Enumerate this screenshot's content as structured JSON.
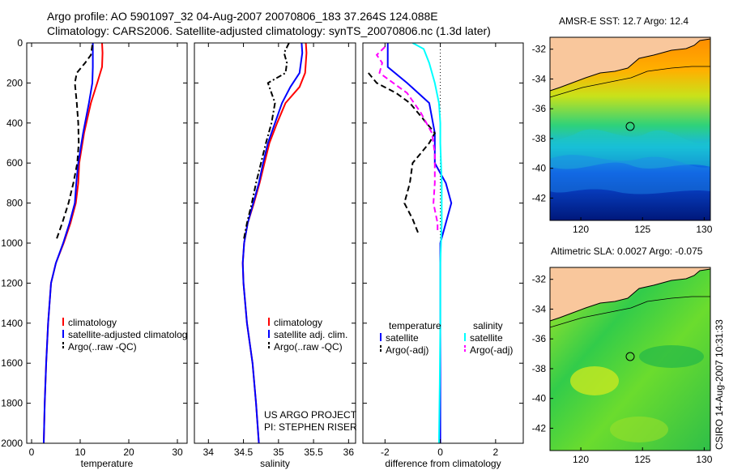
{
  "title_line1": "Argo profile: AO 5901097_32 04-Aug-2007 20070806_183 37.264S 124.088E",
  "title_line2": "Climatology: CARS2006. Satellite-adjusted climatology: synTS_20070806.nc (1.3d later)",
  "timestamp": "CSIRO 14-Aug-2007 10:31:33",
  "project_line1": "US ARGO PROJECT",
  "project_line2": "PI: STEPHEN RISER",
  "colors": {
    "climatology": "#ff0000",
    "satellite": "#0000ff",
    "argo": "#000000",
    "satellite_diff_salinity": "#00ffff",
    "argo_diff_salinity": "#ff00ff",
    "land": "#f9c79c"
  },
  "chart_data": [
    {
      "type": "line",
      "name": "temperature-profile",
      "xlabel": "temperature",
      "ylabel": "",
      "xlim": [
        -1,
        32
      ],
      "ylim": [
        2000,
        0
      ],
      "xticks": [
        0,
        10,
        20,
        30
      ],
      "yticks": [
        0,
        200,
        400,
        600,
        800,
        1000,
        1200,
        1400,
        1600,
        1800,
        2000
      ],
      "legend": [
        "climatology",
        "satellite-adjusted climatology",
        "Argo(..raw -QC)"
      ],
      "series": [
        {
          "name": "climatology",
          "style": "solid",
          "color": "#ff0000",
          "points": [
            [
              14.5,
              0
            ],
            [
              14.6,
              50
            ],
            [
              14.5,
              120
            ],
            [
              13.5,
              200
            ],
            [
              12.2,
              300
            ],
            [
              10.8,
              450
            ],
            [
              9.8,
              600
            ],
            [
              9.6,
              700
            ],
            [
              9.1,
              800
            ],
            [
              8.0,
              900
            ],
            [
              6.6,
              1000
            ],
            [
              5.0,
              1100
            ],
            [
              4.0,
              1200
            ],
            [
              3.4,
              1400
            ],
            [
              3.0,
              1600
            ],
            [
              2.7,
              1800
            ],
            [
              2.5,
              2000
            ]
          ]
        },
        {
          "name": "satellite-adjusted climatology",
          "style": "solid",
          "color": "#0000ff",
          "points": [
            [
              12.6,
              0
            ],
            [
              12.6,
              50
            ],
            [
              12.6,
              120
            ],
            [
              12.5,
              200
            ],
            [
              11.8,
              300
            ],
            [
              10.6,
              450
            ],
            [
              9.6,
              600
            ],
            [
              9.2,
              700
            ],
            [
              8.9,
              800
            ],
            [
              7.8,
              900
            ],
            [
              6.5,
              1000
            ],
            [
              5.0,
              1100
            ],
            [
              4.0,
              1200
            ],
            [
              3.4,
              1400
            ],
            [
              3.0,
              1600
            ],
            [
              2.7,
              1800
            ],
            [
              2.5,
              2000
            ]
          ]
        },
        {
          "name": "Argo(..raw -QC)",
          "style": "dashed",
          "color": "#000000",
          "points": [
            [
              12.5,
              10
            ],
            [
              12.2,
              60
            ],
            [
              11.0,
              100
            ],
            [
              9.3,
              150
            ],
            [
              8.9,
              200
            ],
            [
              9.3,
              300
            ],
            [
              9.6,
              400
            ],
            [
              9.7,
              500
            ],
            [
              9.4,
              600
            ],
            [
              8.6,
              700
            ],
            [
              7.6,
              800
            ],
            [
              6.3,
              900
            ],
            [
              5.0,
              990
            ]
          ]
        }
      ]
    },
    {
      "type": "line",
      "name": "salinity-profile",
      "xlabel": "salinity",
      "xlim": [
        33.8,
        36.1
      ],
      "ylim": [
        2000,
        0
      ],
      "xticks": [
        34,
        34.5,
        35,
        35.5,
        36
      ],
      "legend": [
        "climatology",
        "satellite adj. clim.",
        "Argo(..raw -QC)"
      ],
      "series": [
        {
          "name": "climatology",
          "style": "solid",
          "color": "#ff0000",
          "points": [
            [
              35.39,
              0
            ],
            [
              35.4,
              50
            ],
            [
              35.38,
              150
            ],
            [
              35.3,
              220
            ],
            [
              35.1,
              300
            ],
            [
              34.98,
              400
            ],
            [
              34.87,
              500
            ],
            [
              34.8,
              600
            ],
            [
              34.73,
              700
            ],
            [
              34.65,
              800
            ],
            [
              34.56,
              900
            ],
            [
              34.51,
              1000
            ],
            [
              34.49,
              1100
            ],
            [
              34.5,
              1200
            ],
            [
              34.55,
              1400
            ],
            [
              34.63,
              1600
            ],
            [
              34.68,
              1800
            ],
            [
              34.72,
              2000
            ]
          ]
        },
        {
          "name": "satellite adj. clim.",
          "style": "solid",
          "color": "#0000ff",
          "points": [
            [
              35.33,
              0
            ],
            [
              35.34,
              50
            ],
            [
              35.3,
              150
            ],
            [
              35.17,
              220
            ],
            [
              35.05,
              300
            ],
            [
              34.95,
              400
            ],
            [
              34.85,
              500
            ],
            [
              34.78,
              600
            ],
            [
              34.72,
              700
            ],
            [
              34.64,
              800
            ],
            [
              34.56,
              900
            ],
            [
              34.51,
              1000
            ],
            [
              34.49,
              1100
            ],
            [
              34.5,
              1200
            ],
            [
              34.55,
              1400
            ],
            [
              34.63,
              1600
            ],
            [
              34.68,
              1800
            ],
            [
              34.72,
              2000
            ]
          ]
        },
        {
          "name": "Argo(..raw -QC)",
          "style": "dashdot",
          "color": "#000000",
          "points": [
            [
              35.15,
              0
            ],
            [
              35.08,
              50
            ],
            [
              35.12,
              100
            ],
            [
              35.1,
              150
            ],
            [
              34.85,
              200
            ],
            [
              34.95,
              300
            ],
            [
              34.9,
              400
            ],
            [
              34.82,
              500
            ],
            [
              34.75,
              600
            ],
            [
              34.68,
              700
            ],
            [
              34.62,
              800
            ],
            [
              34.55,
              900
            ],
            [
              34.5,
              990
            ]
          ]
        }
      ]
    },
    {
      "type": "line",
      "name": "difference-profile",
      "xlabel": "difference from climatology",
      "xlim": [
        -2.8,
        3.0
      ],
      "ylim": [
        2000,
        0
      ],
      "xticks": [
        -2,
        0,
        2
      ],
      "ref_line_x": 0,
      "legend": [
        "temperature",
        "satellite",
        "Argo(-adj)",
        "salinity",
        "satellite",
        "Argo(-adj)"
      ],
      "series": [
        {
          "name": "temperature satellite",
          "style": "solid",
          "color": "#0000ff",
          "points": [
            [
              -1.9,
              0
            ],
            [
              -1.9,
              50
            ],
            [
              -1.9,
              120
            ],
            [
              -1.2,
              200
            ],
            [
              -0.4,
              300
            ],
            [
              -0.2,
              450
            ],
            [
              -0.2,
              600
            ],
            [
              0.2,
              700
            ],
            [
              0.4,
              800
            ],
            [
              0.2,
              900
            ],
            [
              0,
              1000
            ],
            [
              0,
              1100
            ],
            [
              0,
              2000
            ]
          ]
        },
        {
          "name": "temperature Argo(-adj)",
          "style": "dashed",
          "color": "#000000",
          "points": [
            [
              -2.6,
              150
            ],
            [
              -2.3,
              200
            ],
            [
              -1.6,
              250
            ],
            [
              -1.1,
              300
            ],
            [
              -0.5,
              400
            ],
            [
              -0.2,
              450
            ],
            [
              -0.4,
              500
            ],
            [
              -0.7,
              550
            ],
            [
              -1.0,
              600
            ],
            [
              -1.1,
              700
            ],
            [
              -1.3,
              800
            ],
            [
              -1.0,
              880
            ],
            [
              -0.8,
              950
            ]
          ]
        },
        {
          "name": "salinity satellite",
          "style": "solid",
          "color": "#00ffff",
          "points": [
            [
              -1.0,
              0
            ],
            [
              -0.6,
              30
            ],
            [
              -0.4,
              100
            ],
            [
              -0.2,
              200
            ],
            [
              -0.05,
              300
            ],
            [
              0,
              400
            ],
            [
              0,
              500
            ],
            [
              0.05,
              700
            ],
            [
              0.05,
              900
            ],
            [
              0,
              1100
            ],
            [
              0,
              1400
            ],
            [
              -0.02,
              1700
            ],
            [
              -0.05,
              2000
            ]
          ]
        },
        {
          "name": "salinity Argo(-adj)",
          "style": "dashed",
          "color": "#ff00ff",
          "points": [
            [
              -2.0,
              20
            ],
            [
              -2.3,
              60
            ],
            [
              -2.1,
              100
            ],
            [
              -2.2,
              150
            ],
            [
              -1.2,
              250
            ],
            [
              -0.7,
              350
            ],
            [
              -0.3,
              450
            ],
            [
              -0.2,
              550
            ],
            [
              -0.2,
              700
            ],
            [
              -0.25,
              800
            ],
            [
              -0.1,
              900
            ],
            [
              -0.1,
              950
            ]
          ]
        }
      ]
    },
    {
      "type": "heatmap",
      "name": "amsr-sst-map",
      "title": "AMSR-E SST: 12.7  Argo: 12.4",
      "xlim": [
        117.5,
        130.5
      ],
      "ylim": [
        -43.5,
        -31.2
      ],
      "xticks": [
        120,
        125,
        130
      ],
      "yticks": [
        -32,
        -34,
        -36,
        -38,
        -40,
        -42
      ],
      "marker": {
        "lon": 124.088,
        "lat": -37.264
      }
    },
    {
      "type": "heatmap",
      "name": "altimetric-sla-map",
      "title": "Altimetric SLA: 0.0027  Argo: -0.075",
      "xlim": [
        117.5,
        130.5
      ],
      "ylim": [
        -43.5,
        -31.2
      ],
      "xticks": [
        120,
        125,
        130
      ],
      "yticks": [
        -32,
        -34,
        -36,
        -38,
        -40,
        -42
      ],
      "marker": {
        "lon": 124.088,
        "lat": -37.264
      }
    }
  ]
}
